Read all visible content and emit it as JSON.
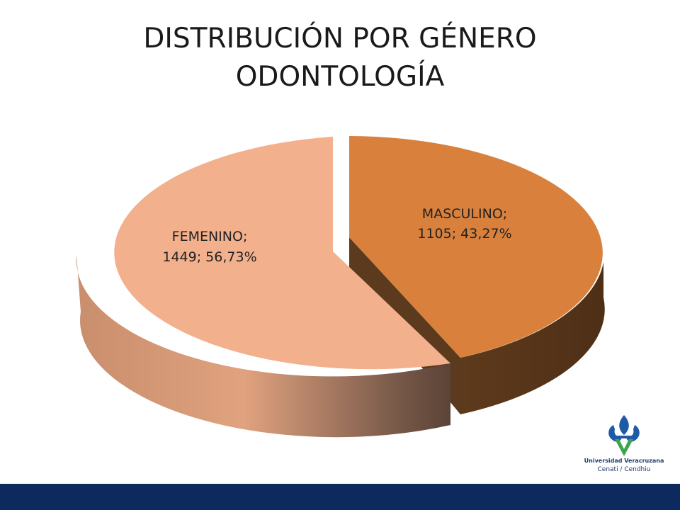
{
  "chart_data": {
    "type": "pie",
    "title_line1": "DISTRIBUCIÓN POR GÉNERO",
    "title_line2": "ODONTOLOGÍA",
    "series": [
      {
        "name": "FEMENINO",
        "value": 1449,
        "percent": "56,73%",
        "fraction": 0.5673,
        "color": "#f2b08c",
        "data_label_line1": "FEMENINO;",
        "data_label_line2": "1449; 56,73%"
      },
      {
        "name": "MASCULINO",
        "value": 1105,
        "percent": "43,27%",
        "fraction": 0.4327,
        "color": "#d9813c",
        "data_label_line1": "MASCULINO;",
        "data_label_line2": "1105; 43,27%"
      }
    ],
    "style": "3d-exploded"
  },
  "logo": {
    "university": "Universidad Veracruzana",
    "subtitle": "Cenati / Cendhiu",
    "colors": {
      "blue": "#1f5aa6",
      "green": "#3aa54a"
    }
  },
  "footer": {
    "color": "#0c2a5e"
  }
}
